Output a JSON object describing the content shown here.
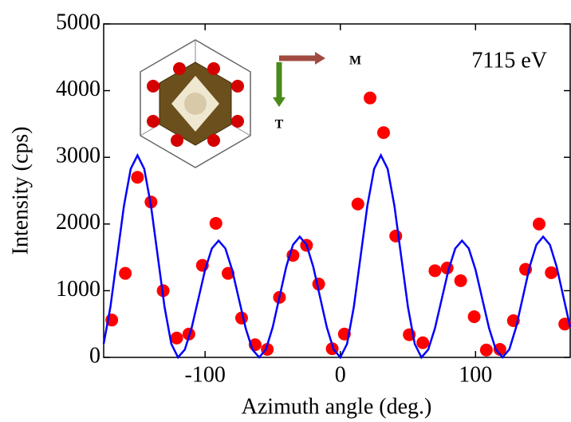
{
  "chart_data": {
    "type": "scatter",
    "xlabel": "Azimuth angle (deg.)",
    "ylabel": "Intensity (cps)",
    "annotations": [
      "7115 eV",
      "M",
      "T"
    ],
    "xlim": [
      -175,
      170
    ],
    "ylim": [
      0,
      5000
    ],
    "xticks": [
      -100,
      0,
      100
    ],
    "yticks": [
      0,
      1000,
      2000,
      3000,
      4000,
      5000
    ],
    "grid": false,
    "series": [
      {
        "color": "#ff0000",
        "marker": "dot",
        "x": [
          -169,
          -159,
          -150,
          -140,
          -131,
          -121,
          -112,
          -102,
          -92,
          -83,
          -73,
          -63,
          -54,
          -45,
          -35,
          -25,
          -16,
          -6,
          3,
          13,
          22,
          32,
          41,
          51,
          61,
          70,
          79,
          89,
          99,
          108,
          118,
          128,
          137,
          147,
          156,
          166
        ],
        "values": [
          560,
          1260,
          2700,
          2330,
          1000,
          290,
          350,
          1380,
          2010,
          1260,
          590,
          190,
          120,
          900,
          1530,
          1680,
          1100,
          130,
          350,
          2300,
          3890,
          3370,
          1820,
          340,
          220,
          1300,
          1340,
          1150,
          610,
          110,
          120,
          550,
          1320,
          2000,
          1270,
          500
        ]
      },
      {
        "color": "#0000ff",
        "marker": "line",
        "x": [
          -175,
          -170,
          -165,
          -160,
          -155,
          -150,
          -145,
          -140,
          -135,
          -130,
          -125,
          -120,
          -115,
          -110,
          -105,
          -100,
          -95,
          -90,
          -85,
          -80,
          -75,
          -70,
          -65,
          -60,
          -55,
          -50,
          -45,
          -40,
          -35,
          -30,
          -25,
          -20,
          -15,
          -10,
          -5,
          0,
          5,
          10,
          15,
          20,
          25,
          30,
          35,
          40,
          45,
          50,
          55,
          60,
          65,
          70,
          75,
          80,
          85,
          90,
          95,
          100,
          105,
          110,
          115,
          120,
          125,
          130,
          135,
          140,
          145,
          150,
          155,
          160,
          165,
          170
        ],
        "values": [
          203,
          758,
          1515,
          2273,
          2827,
          3030,
          2827,
          2273,
          1515,
          758,
          203,
          0,
          117,
          438,
          875,
          1313,
          1633,
          1750,
          1633,
          1313,
          875,
          438,
          117,
          0,
          121,
          453,
          905,
          1358,
          1689,
          1810,
          1689,
          1358,
          905,
          453,
          121,
          0,
          203,
          758,
          1515,
          2273,
          2827,
          3030,
          2827,
          2273,
          1515,
          758,
          203,
          0,
          117,
          438,
          875,
          1313,
          1633,
          1750,
          1633,
          1313,
          875,
          438,
          117,
          0,
          121,
          453,
          905,
          1358,
          1689,
          1810,
          1689,
          1358,
          905,
          453
        ]
      }
    ]
  }
}
